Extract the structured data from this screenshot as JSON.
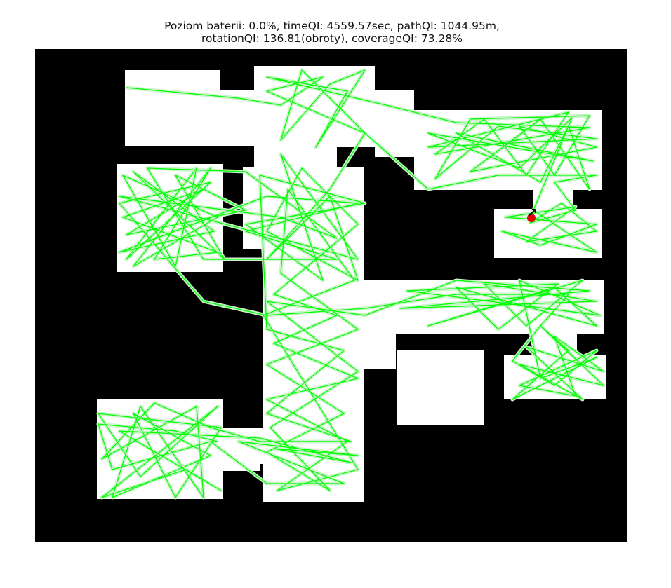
{
  "title": {
    "line1": "Poziom baterii: 0.0%, timeQI: 4559.57sec, pathQI: 1044.95m,",
    "line2": "rotationQI: 136.81(obroty), coverageQI: 73.28%"
  },
  "colors": {
    "wall": "#000000",
    "free_space": "#ffffff",
    "path": "#00ff00",
    "path_halo": "#c8f5c8",
    "robot": "#e60000",
    "heading_marker": "#000000"
  },
  "icons": {
    "robot": "robot-marker-icon",
    "heading": "heading-arrow-icon"
  }
}
